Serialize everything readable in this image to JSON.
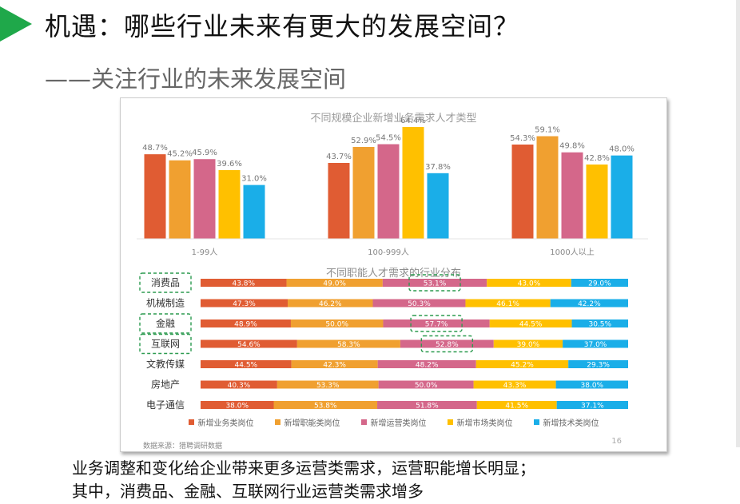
{
  "slide": {
    "title": "机遇：哪些行业未来有更大的发展空间？",
    "subtitle": "——关注行业的未来发展空间",
    "footer_line1": "业务调整和变化给企业带来更多运营类需求，运营职能增长明显；",
    "footer_line2": "其中，消费品、金融、互联网行业运营类需求增多",
    "source": "数据来源：猎聘调研数据",
    "page_number": "16",
    "legend": [
      "新增业务类岗位",
      "新增职能类岗位",
      "新增运营类岗位",
      "新增市场类岗位",
      "新增技术类岗位"
    ]
  },
  "colors": {
    "accent": "#1fa84a",
    "series": [
      "#e05c33",
      "#f0a030",
      "#d4678a",
      "#ffc000",
      "#1aaee8"
    ],
    "highlight_box": "#2b9a4f"
  },
  "chart_data": [
    {
      "type": "bar",
      "title": "不同规模企业新增业务需求人才类型",
      "categories": [
        "1-99人",
        "100-999人",
        "1000人以上"
      ],
      "series": [
        {
          "name": "新增业务类岗位",
          "values": [
            48.7,
            43.7,
            54.3
          ]
        },
        {
          "name": "新增职能类岗位",
          "values": [
            45.2,
            52.9,
            59.1
          ]
        },
        {
          "name": "新增运营类岗位",
          "values": [
            45.9,
            54.5,
            49.8
          ]
        },
        {
          "name": "新增市场类岗位",
          "values": [
            39.6,
            64.4,
            42.8
          ]
        },
        {
          "name": "新增技术类岗位",
          "values": [
            31.0,
            37.8,
            48.0
          ]
        }
      ],
      "labels": [
        [
          "48.7%",
          "45.2%",
          "45.9%",
          "39.6%",
          "31.0%"
        ],
        [
          "43.7%",
          "52.9%",
          "54.5%",
          "64.4%",
          "37.8%"
        ],
        [
          "54.3%",
          "59.1%",
          "49.8%",
          "42.8%",
          "48.0%"
        ]
      ],
      "ylim": [
        0,
        70
      ]
    },
    {
      "type": "bar",
      "orientation": "horizontal-stacked",
      "title": "不同职能人才需求的行业分布",
      "categories": [
        "消费品",
        "机械制造",
        "金融",
        "互联网",
        "文教传媒",
        "房地产",
        "电子通信"
      ],
      "highlighted": [
        "消费品",
        "金融",
        "互联网"
      ],
      "series": [
        {
          "name": "新增业务类岗位",
          "values": [
            43.8,
            47.3,
            48.9,
            54.6,
            44.5,
            40.3,
            38.0
          ]
        },
        {
          "name": "新增职能类岗位",
          "values": [
            49.0,
            46.2,
            50.0,
            58.3,
            42.3,
            53.3,
            53.8
          ]
        },
        {
          "name": "新增运营类岗位",
          "values": [
            53.1,
            50.3,
            57.7,
            52.8,
            48.2,
            50.0,
            51.8
          ]
        },
        {
          "name": "新增市场类岗位",
          "values": [
            43.0,
            46.1,
            44.5,
            39.0,
            45.2,
            43.3,
            41.5
          ]
        },
        {
          "name": "新增技术类岗位",
          "values": [
            29.0,
            42.2,
            30.5,
            37.0,
            29.3,
            38.0,
            37.1
          ]
        }
      ],
      "labels": [
        [
          "43.8%",
          "49.0%",
          "53.1%",
          "43.0%",
          "29.0%"
        ],
        [
          "47.3%",
          "46.2%",
          "50.3%",
          "46.1%",
          "42.2%"
        ],
        [
          "48.9%",
          "50.0%",
          "57.7%",
          "44.5%",
          "30.5%"
        ],
        [
          "54.6%",
          "58.3%",
          "52.8%",
          "39.0%",
          "37.0%"
        ],
        [
          "44.5%",
          "42.3%",
          "48.2%",
          "45.2%",
          "29.3%"
        ],
        [
          "40.3%",
          "53.3%",
          "50.0%",
          "43.3%",
          "38.0%"
        ],
        [
          "38.0%",
          "53.8%",
          "51.8%",
          "41.5%",
          "37.1%"
        ]
      ]
    }
  ]
}
